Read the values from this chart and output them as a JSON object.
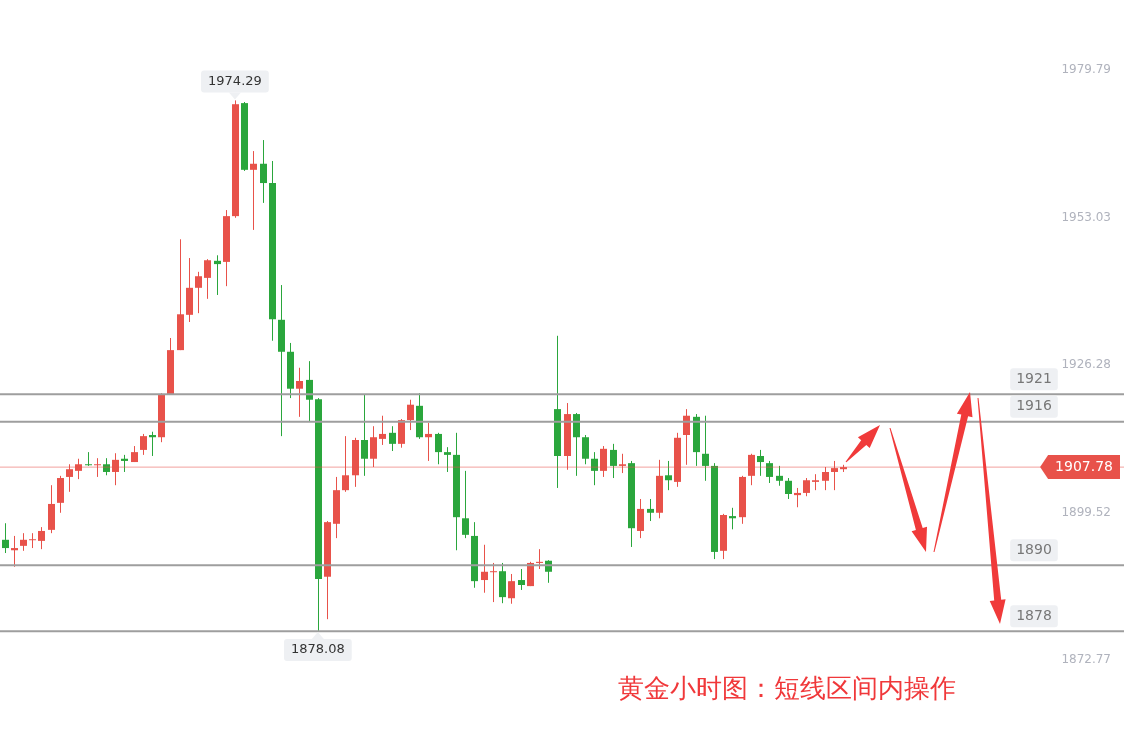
{
  "chart_data": {
    "type": "candlestick",
    "title": "黄金小时图：短线区间内操作",
    "categories": [
      null,
      null,
      null,
      null,
      null,
      null,
      null,
      null,
      null,
      null,
      null,
      null,
      null,
      null,
      null,
      null,
      null,
      null,
      null,
      null,
      null,
      null,
      null,
      null,
      null,
      null,
      null,
      null,
      null,
      null,
      null,
      null,
      null,
      null,
      null,
      null,
      null,
      null,
      null,
      null,
      null,
      null,
      null,
      null,
      null,
      null,
      null,
      null,
      null,
      null,
      null,
      null,
      null,
      null,
      null,
      null,
      null,
      null,
      null,
      null,
      null,
      null,
      null,
      null,
      null,
      null,
      null,
      null,
      null,
      null,
      null,
      null,
      null,
      null,
      null,
      null,
      null,
      null,
      null,
      null,
      null,
      null,
      null,
      null,
      null,
      null,
      null,
      null,
      null,
      null,
      null,
      null,
      null,
      null,
      null,
      null,
      null,
      null,
      null,
      null,
      null,
      null,
      null,
      null,
      null,
      null,
      null,
      null,
      null,
      null,
      null,
      null,
      null,
      null,
      null,
      null,
      null,
      null,
      null,
      null,
      null,
      null
    ],
    "ohlc": [
      [
        1894.6,
        1897.6,
        1892.2,
        1893.1
      ],
      [
        1892.7,
        1895.3,
        1889.7,
        1893.1
      ],
      [
        1893.5,
        1895.8,
        1892.6,
        1894.6
      ],
      [
        1894.6,
        1895.8,
        1893.1,
        1894.7
      ],
      [
        1894.4,
        1896.9,
        1892.9,
        1896.2
      ],
      [
        1896.4,
        1904.5,
        1895.8,
        1901.1
      ],
      [
        1901.3,
        1906.2,
        1899.5,
        1905.8
      ],
      [
        1906.0,
        1908.3,
        1903.3,
        1907.4
      ],
      [
        1907.1,
        1909.3,
        1905.6,
        1908.3
      ],
      [
        1908.3,
        1910.5,
        1908.0,
        1908.2
      ],
      [
        1908.2,
        1909.4,
        1906.0,
        1908.3
      ],
      [
        1908.3,
        1909.4,
        1906.3,
        1906.9
      ],
      [
        1906.9,
        1910.3,
        1904.5,
        1909.1
      ],
      [
        1909.3,
        1910.0,
        1906.9,
        1908.9
      ],
      [
        1908.7,
        1911.6,
        1908.7,
        1910.5
      ],
      [
        1910.9,
        1913.8,
        1910.0,
        1913.4
      ],
      [
        1913.6,
        1914.2,
        1909.8,
        1913.2
      ],
      [
        1913.2,
        1921.2,
        1912.3,
        1920.9
      ],
      [
        1920.9,
        1931.2,
        1920.9,
        1929.0
      ],
      [
        1929.0,
        1949.1,
        1929.0,
        1935.5
      ],
      [
        1935.4,
        1945.7,
        1934.1,
        1940.3
      ],
      [
        1940.3,
        1943.2,
        1935.7,
        1942.4
      ],
      [
        1942.1,
        1945.5,
        1938.3,
        1945.3
      ],
      [
        1945.2,
        1946.2,
        1939.0,
        1944.6
      ],
      [
        1945.0,
        1954.4,
        1940.6,
        1953.3
      ],
      [
        1953.3,
        1974.29,
        1953.0,
        1973.6
      ],
      [
        1973.8,
        1974.0,
        1961.5,
        1961.7
      ],
      [
        1961.7,
        1965.1,
        1950.8,
        1962.8
      ],
      [
        1962.8,
        1967.1,
        1955.7,
        1959.3
      ],
      [
        1959.3,
        1963.3,
        1930.7,
        1934.6
      ],
      [
        1934.5,
        1940.8,
        1913.4,
        1928.7
      ],
      [
        1928.7,
        1930.3,
        1920.3,
        1922.0
      ],
      [
        1922.0,
        1925.8,
        1916.9,
        1923.4
      ],
      [
        1923.6,
        1927.0,
        1916.1,
        1920.0
      ],
      [
        1920.1,
        1920.3,
        1878.08,
        1887.5
      ],
      [
        1887.9,
        1898.0,
        1880.2,
        1897.8
      ],
      [
        1897.5,
        1906.0,
        1894.9,
        1903.6
      ],
      [
        1903.6,
        1913.4,
        1903.3,
        1906.3
      ],
      [
        1906.3,
        1913.1,
        1904.2,
        1912.7
      ],
      [
        1912.7,
        1921.0,
        1906.2,
        1909.3
      ],
      [
        1909.3,
        1915.2,
        1907.8,
        1913.2
      ],
      [
        1912.9,
        1917.1,
        1911.8,
        1913.8
      ],
      [
        1914.0,
        1915.2,
        1910.7,
        1912.0
      ],
      [
        1912.0,
        1916.5,
        1911.3,
        1916.3
      ],
      [
        1916.3,
        1920.0,
        1914.5,
        1919.1
      ],
      [
        1918.9,
        1921.2,
        1912.9,
        1913.2
      ],
      [
        1913.2,
        1915.8,
        1908.9,
        1913.8
      ],
      [
        1913.8,
        1914.0,
        1908.3,
        1910.5
      ],
      [
        1910.5,
        1911.4,
        1906.9,
        1910.0
      ],
      [
        1910.0,
        1914.0,
        1892.7,
        1898.7
      ],
      [
        1898.5,
        1907.1,
        1894.9,
        1895.5
      ],
      [
        1895.3,
        1897.8,
        1885.9,
        1887.1
      ],
      [
        1887.3,
        1893.7,
        1885.0,
        1888.8
      ],
      [
        1888.8,
        1890.4,
        1883.3,
        1888.9
      ],
      [
        1888.9,
        1890.4,
        1883.1,
        1884.2
      ],
      [
        1884.0,
        1888.4,
        1883.0,
        1887.1
      ],
      [
        1887.3,
        1889.3,
        1885.5,
        1886.4
      ],
      [
        1886.2,
        1890.6,
        1886.2,
        1890.4
      ],
      [
        1890.4,
        1892.9,
        1889.3,
        1890.6
      ],
      [
        1890.8,
        1890.9,
        1886.8,
        1888.8
      ],
      [
        1918.3,
        1931.6,
        1904.0,
        1909.8
      ],
      [
        1909.8,
        1919.4,
        1907.3,
        1917.4
      ],
      [
        1917.4,
        1917.6,
        1906.2,
        1913.2
      ],
      [
        1913.2,
        1913.6,
        1908.3,
        1909.3
      ],
      [
        1909.3,
        1910.5,
        1904.5,
        1907.1
      ],
      [
        1907.1,
        1911.6,
        1906.0,
        1911.1
      ],
      [
        1910.9,
        1912.0,
        1905.8,
        1908.0
      ],
      [
        1908.0,
        1910.2,
        1906.7,
        1908.3
      ],
      [
        1908.5,
        1908.9,
        1893.3,
        1896.7
      ],
      [
        1896.2,
        1902.0,
        1894.9,
        1900.2
      ],
      [
        1900.2,
        1902.0,
        1898.0,
        1899.5
      ],
      [
        1899.5,
        1909.1,
        1898.5,
        1906.2
      ],
      [
        1906.3,
        1908.9,
        1903.6,
        1905.4
      ],
      [
        1905.1,
        1914.0,
        1904.2,
        1913.1
      ],
      [
        1913.6,
        1918.3,
        1908.2,
        1917.1
      ],
      [
        1916.9,
        1917.4,
        1908.0,
        1910.5
      ],
      [
        1910.2,
        1917.1,
        1905.3,
        1908.0
      ],
      [
        1908.0,
        1908.5,
        1891.1,
        1892.4
      ],
      [
        1892.6,
        1899.3,
        1891.1,
        1899.1
      ],
      [
        1898.9,
        1900.4,
        1896.5,
        1898.5
      ],
      [
        1898.7,
        1906.2,
        1897.5,
        1906.0
      ],
      [
        1906.2,
        1910.2,
        1904.5,
        1910.0
      ],
      [
        1909.8,
        1910.9,
        1906.2,
        1908.7
      ],
      [
        1908.5,
        1908.9,
        1904.9,
        1906.0
      ],
      [
        1906.2,
        1908.0,
        1904.4,
        1905.3
      ],
      [
        1905.3,
        1905.8,
        1902.0,
        1902.9
      ],
      [
        1902.7,
        1904.0,
        1900.5,
        1903.1
      ],
      [
        1903.1,
        1905.8,
        1902.5,
        1905.4
      ],
      [
        1905.1,
        1906.5,
        1903.6,
        1905.4
      ],
      [
        1905.3,
        1907.8,
        1903.6,
        1906.9
      ],
      [
        1906.9,
        1908.9,
        1903.6,
        1907.6
      ],
      [
        1907.4,
        1908.2,
        1906.9,
        1907.78
      ],
      null,
      null,
      null,
      null,
      null,
      null,
      null,
      null,
      null,
      null,
      null,
      null,
      null,
      null,
      null,
      null,
      null,
      null,
      null,
      null,
      null,
      null,
      null,
      null,
      null,
      null,
      null,
      null,
      null,
      null
    ],
    "colors": [
      "#2aa63c",
      "#e8524a",
      "#e8524a",
      "#e8524a",
      "#e8524a",
      "#e8524a",
      "#e8524a",
      "#e8524a",
      "#e8524a",
      "#2aa63c",
      "#e8524a",
      "#2aa63c",
      "#e8524a",
      "#2aa63c",
      "#e8524a",
      "#e8524a",
      "#2aa63c",
      "#e8524a",
      "#e8524a",
      "#e8524a",
      "#e8524a",
      "#e8524a",
      "#e8524a",
      "#2aa63c",
      "#e8524a",
      "#e8524a",
      "#2aa63c",
      "#e8524a",
      "#2aa63c",
      "#2aa63c",
      "#2aa63c",
      "#2aa63c",
      "#e8524a",
      "#2aa63c",
      "#2aa63c",
      "#e8524a",
      "#e8524a",
      "#e8524a",
      "#e8524a",
      "#2aa63c",
      "#e8524a",
      "#e8524a",
      "#2aa63c",
      "#e8524a",
      "#e8524a",
      "#2aa63c",
      "#e8524a",
      "#2aa63c",
      "#2aa63c",
      "#2aa63c",
      "#2aa63c",
      "#2aa63c",
      "#e8524a",
      "#e8524a",
      "#2aa63c",
      "#e8524a",
      "#2aa63c",
      "#e8524a",
      "#e8524a",
      "#2aa63c",
      "#2aa63c",
      "#e8524a",
      "#2aa63c",
      "#2aa63c",
      "#2aa63c",
      "#e8524a",
      "#2aa63c",
      "#e8524a",
      "#2aa63c",
      "#e8524a",
      "#2aa63c",
      "#e8524a",
      "#2aa63c",
      "#e8524a",
      "#e8524a",
      "#2aa63c",
      "#2aa63c",
      "#2aa63c",
      "#e8524a",
      "#2aa63c",
      "#e8524a",
      "#e8524a",
      "#2aa63c",
      "#2aa63c",
      "#2aa63c",
      "#2aa63c",
      "#e8524a",
      "#e8524a",
      "#e8524a",
      "#e8524a",
      "#e8524a",
      "#e8524a",
      null,
      null,
      null,
      null,
      null,
      null,
      null,
      null,
      null,
      null,
      null,
      null,
      null,
      null,
      null,
      null,
      null,
      null,
      null,
      null,
      null,
      null,
      null,
      null,
      null,
      null,
      null,
      null,
      null,
      null
    ],
    "ylim": [
      1857.2,
      1992.5
    ],
    "yticks": [
      1979.79,
      1953.03,
      1926.28,
      1899.52,
      1872.77
    ],
    "grid": false,
    "legend": false,
    "tick_labels": "y",
    "ref_lines": [
      {
        "axis": "y",
        "value": 1921,
        "label": "1921",
        "color": "#9e9e9e"
      },
      {
        "axis": "y",
        "value": 1916,
        "label": "1916",
        "color": "#9e9e9e"
      },
      {
        "axis": "y",
        "value": 1907.78,
        "label": "1907.78",
        "color": "#e8524a"
      },
      {
        "axis": "y",
        "value": 1890,
        "label": "1890",
        "color": "#9e9e9e"
      },
      {
        "axis": "y",
        "value": 1878,
        "label": "1878",
        "color": "#9e9e9e"
      }
    ],
    "annotations": [
      "1974.29",
      "1878.08"
    ]
  }
}
